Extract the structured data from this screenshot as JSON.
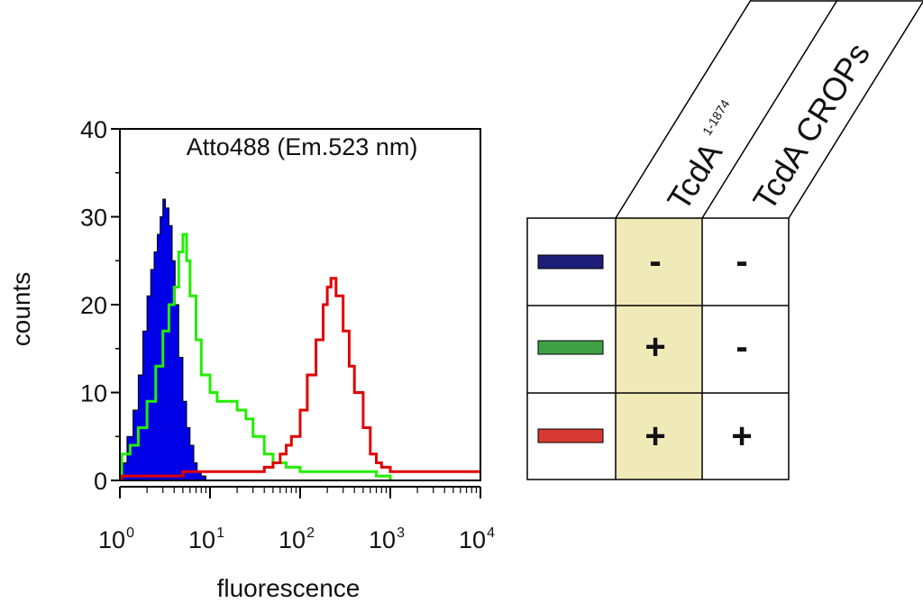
{
  "chart_data": {
    "type": "histogram",
    "title": "Atto488 (Em.523 nm)",
    "xlabel": "fluorescence",
    "ylabel": "counts",
    "xscale": "log",
    "xlim": [
      1,
      10000
    ],
    "ylim": [
      0,
      40
    ],
    "yticks": [
      {
        "value": 0,
        "label": "0"
      },
      {
        "value": 10,
        "label": "10"
      },
      {
        "value": 20,
        "label": "20"
      },
      {
        "value": 30,
        "label": "30"
      },
      {
        "value": 40,
        "label": "40"
      }
    ],
    "xticks": [
      {
        "value": 1,
        "base": "10",
        "exp": "0"
      },
      {
        "value": 10,
        "base": "10",
        "exp": "1"
      },
      {
        "value": 100,
        "base": "10",
        "exp": "2"
      },
      {
        "value": 1000,
        "base": "10",
        "exp": "3"
      },
      {
        "value": 10000,
        "base": "10",
        "exp": "4"
      }
    ],
    "series": [
      {
        "name": "blue",
        "color": "#0000e6",
        "filled": true,
        "x": [
          1.05,
          1.2,
          1.4,
          1.6,
          1.8,
          2.0,
          2.2,
          2.4,
          2.6,
          2.8,
          3.0,
          3.2,
          3.5,
          3.8,
          4.1,
          4.5,
          5.0,
          5.5,
          6.0,
          6.6,
          7.2,
          8.0,
          9.0
        ],
        "y": [
          2,
          5,
          8,
          12,
          17,
          21,
          24,
          26,
          28,
          30,
          32,
          31,
          29,
          25,
          20,
          14,
          9,
          6,
          4,
          2,
          1,
          0.5,
          0
        ]
      },
      {
        "name": "green",
        "color": "#22ee00",
        "filled": false,
        "x": [
          1.05,
          1.3,
          1.6,
          2.0,
          2.5,
          3.0,
          3.5,
          4.0,
          4.5,
          5.0,
          5.5,
          6.0,
          7.0,
          8.0,
          10,
          12,
          15,
          20,
          25,
          30,
          40,
          50,
          70,
          100,
          150,
          200,
          300,
          500,
          700,
          1000
        ],
        "y": [
          3,
          4,
          6,
          9,
          13,
          17,
          20,
          22,
          26,
          28,
          25,
          21,
          16,
          12,
          10,
          9,
          9,
          8,
          7,
          5,
          3,
          2,
          1.5,
          1,
          1,
          1,
          1,
          1,
          0.5,
          0
        ]
      },
      {
        "name": "red",
        "color": "#e00000",
        "filled": false,
        "x": [
          1.05,
          2,
          5,
          10,
          20,
          30,
          40,
          50,
          60,
          70,
          80,
          100,
          120,
          150,
          180,
          200,
          220,
          250,
          300,
          350,
          400,
          500,
          600,
          700,
          800,
          1000,
          1500,
          2000,
          5000,
          10000
        ],
        "y": [
          0.5,
          0.5,
          1,
          1,
          1,
          1,
          1.5,
          2,
          3,
          4,
          5,
          8,
          12,
          16,
          20,
          22,
          23,
          21,
          17,
          13,
          10,
          6,
          3,
          2,
          1.5,
          1,
          1,
          1,
          1,
          1
        ]
      }
    ]
  },
  "legend_table": {
    "columns": [
      {
        "name": "TcdA",
        "sup": "1-1874"
      },
      {
        "name": "TcdA CROPs",
        "sup": ""
      }
    ],
    "highlight_color": "#f0eab8",
    "rows": [
      {
        "swatch_color": "#1e1e78",
        "values": [
          "-",
          "-"
        ]
      },
      {
        "swatch_color": "#3fa046",
        "values": [
          "+",
          "-"
        ]
      },
      {
        "swatch_color": "#d63a32",
        "values": [
          "+",
          "+"
        ]
      }
    ]
  }
}
